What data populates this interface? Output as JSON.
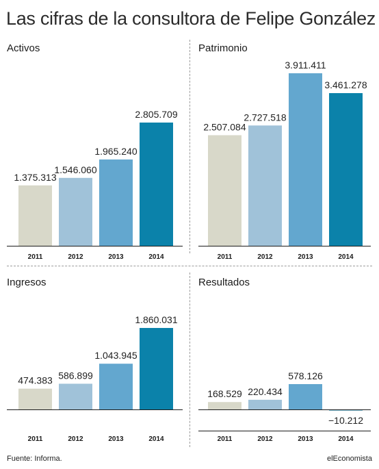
{
  "title": "Las cifras de la consultora de Felipe González",
  "footer": {
    "source": "Fuente: Informa.",
    "brand": "elEconomista"
  },
  "colors": [
    "#d8d8c9",
    "#a0c2d9",
    "#63a7cf",
    "#0b82aa"
  ],
  "chart_data": [
    {
      "type": "bar",
      "title": "Activos",
      "categories": [
        "2011",
        "2012",
        "2013",
        "2014"
      ],
      "values": [
        1375313,
        1546060,
        1965240,
        2805709
      ],
      "labels": [
        "1.375.313",
        "1.546.060",
        "1.965.240",
        "2.805.709"
      ],
      "ylim": [
        0,
        2805709
      ]
    },
    {
      "type": "bar",
      "title": "Patrimonio",
      "categories": [
        "2011",
        "2012",
        "2013",
        "2014"
      ],
      "values": [
        2507084,
        2727518,
        3911411,
        3461278
      ],
      "labels": [
        "2.507.084",
        "2.727.518",
        "3.911.411",
        "3.461.278"
      ],
      "ylim": [
        0,
        3911411
      ]
    },
    {
      "type": "bar",
      "title": "Ingresos",
      "categories": [
        "2011",
        "2012",
        "2013",
        "2014"
      ],
      "values": [
        474383,
        586899,
        1043945,
        1860031
      ],
      "labels": [
        "474.383",
        "586.899",
        "1.043.945",
        "1.860.031"
      ],
      "ylim": [
        0,
        1860031
      ]
    },
    {
      "type": "bar",
      "title": "Resultados",
      "categories": [
        "2011",
        "2012",
        "2013",
        "2014"
      ],
      "values": [
        168529,
        220434,
        578126,
        -10212
      ],
      "labels": [
        "168.529",
        "220.434",
        "578.126",
        "−10.212"
      ],
      "ylim": [
        -10212,
        578126
      ]
    }
  ]
}
